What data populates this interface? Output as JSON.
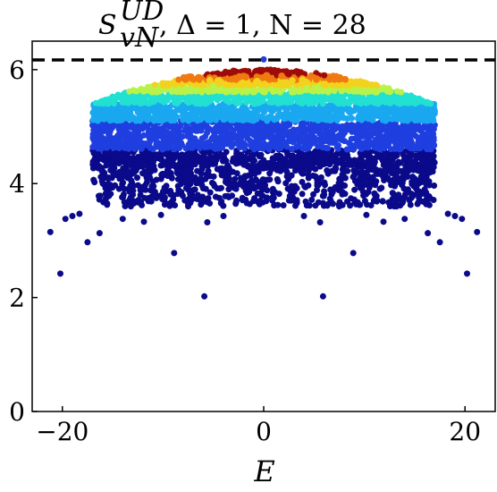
{
  "chart_data": {
    "type": "scatter",
    "title": "S_vN^UD, Δ = 1, N = 28",
    "title_parts": {
      "symbol": "S",
      "subscript": "vN",
      "superscript": "UD",
      "rest": ", Δ = 1, N = 28"
    },
    "xlabel": "E",
    "ylabel": "",
    "xlim": [
      -23,
      23
    ],
    "ylim": [
      0,
      6.5
    ],
    "xticks": [
      -20,
      0,
      20
    ],
    "xtick_labels": [
      "−20",
      "0",
      "20"
    ],
    "yticks": [
      0,
      2,
      4,
      6
    ],
    "ytick_labels": [
      "0",
      "2",
      "4",
      "6"
    ],
    "reference_line": {
      "y": 6.17,
      "style": "dashed",
      "color": "#000000"
    },
    "colormap": "jet",
    "color_by": "density",
    "grid": false,
    "legend": "none",
    "outlier_points": [
      {
        "x": -20.2,
        "y": 2.42
      },
      {
        "x": 20.2,
        "y": 2.42
      },
      {
        "x": -5.9,
        "y": 2.02
      },
      {
        "x": 5.9,
        "y": 2.02
      },
      {
        "x": -8.9,
        "y": 2.78
      },
      {
        "x": 8.9,
        "y": 2.78
      },
      {
        "x": -21.2,
        "y": 3.15
      },
      {
        "x": 21.2,
        "y": 3.15
      },
      {
        "x": -17.5,
        "y": 2.97
      },
      {
        "x": 17.5,
        "y": 2.97
      },
      {
        "x": -19.7,
        "y": 3.38
      },
      {
        "x": 19.7,
        "y": 3.38
      },
      {
        "x": -19.0,
        "y": 3.43
      },
      {
        "x": 19.0,
        "y": 3.43
      },
      {
        "x": -18.3,
        "y": 3.47
      },
      {
        "x": 18.3,
        "y": 3.47
      },
      {
        "x": -16.3,
        "y": 3.13
      },
      {
        "x": 16.3,
        "y": 3.13
      },
      {
        "x": -14.0,
        "y": 3.38
      },
      {
        "x": 14.0,
        "y": 3.38
      },
      {
        "x": -11.9,
        "y": 3.33
      },
      {
        "x": 11.9,
        "y": 3.33
      },
      {
        "x": -13.2,
        "y": 3.6
      },
      {
        "x": 13.2,
        "y": 3.6
      },
      {
        "x": -10.2,
        "y": 3.45
      },
      {
        "x": 10.2,
        "y": 3.45
      },
      {
        "x": -5.6,
        "y": 3.32
      },
      {
        "x": 5.6,
        "y": 3.32
      },
      {
        "x": -4.0,
        "y": 3.43
      },
      {
        "x": 4.0,
        "y": 3.43
      },
      {
        "x": -2.7,
        "y": 3.7
      },
      {
        "x": 2.7,
        "y": 3.7
      },
      {
        "x": -7.5,
        "y": 3.6
      },
      {
        "x": 7.5,
        "y": 3.6
      },
      {
        "x": -15.2,
        "y": 3.82
      },
      {
        "x": 15.2,
        "y": 3.82
      },
      {
        "x": -9.0,
        "y": 3.72
      },
      {
        "x": 9.0,
        "y": 3.72
      }
    ],
    "color_bands": [
      {
        "y_min": 3.3,
        "y_max": 4.6,
        "color": "#0a0a8a"
      },
      {
        "y_min": 4.6,
        "y_max": 5.1,
        "color": "#1f3fe0"
      },
      {
        "y_min": 5.1,
        "y_max": 5.4,
        "color": "#1aa8f0"
      },
      {
        "y_min": 5.4,
        "y_max": 5.6,
        "color": "#22e0d2"
      },
      {
        "y_min": 5.6,
        "y_max": 5.72,
        "color": "#b8f24a"
      },
      {
        "y_min": 5.72,
        "y_max": 5.82,
        "color": "#f2d21e"
      },
      {
        "y_min": 5.82,
        "y_max": 5.9,
        "color": "#f07a10"
      },
      {
        "y_min": 5.9,
        "y_max": 6.1,
        "color": "#9e0c0a"
      }
    ]
  }
}
